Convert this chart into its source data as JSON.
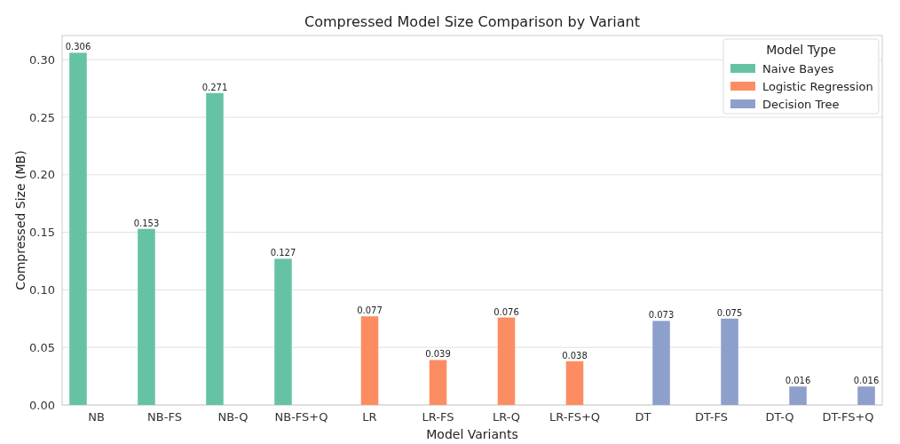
{
  "chart_data": {
    "type": "bar",
    "title": "Compressed Model Size Comparison by Variant",
    "xlabel": "Model Variants",
    "ylabel": "Compressed Size (MB)",
    "legend_title": "Model Type",
    "categories": [
      "NB",
      "NB-FS",
      "NB-Q",
      "NB-FS+Q",
      "LR",
      "LR-FS",
      "LR-Q",
      "LR-FS+Q",
      "DT",
      "DT-FS",
      "DT-Q",
      "DT-FS+Q"
    ],
    "series": [
      {
        "name": "Naive Bayes",
        "color": "#66c2a5",
        "values": [
          0.306,
          0.153,
          0.271,
          0.127,
          null,
          null,
          null,
          null,
          null,
          null,
          null,
          null
        ]
      },
      {
        "name": "Logistic Regression",
        "color": "#fc8d62",
        "values": [
          null,
          null,
          null,
          null,
          0.077,
          0.039,
          0.076,
          0.038,
          null,
          null,
          null,
          null
        ]
      },
      {
        "name": "Decision Tree",
        "color": "#8da0cb",
        "values": [
          null,
          null,
          null,
          null,
          null,
          null,
          null,
          null,
          0.073,
          0.075,
          0.016,
          0.016
        ]
      }
    ],
    "ylim": [
      0,
      0.321
    ],
    "yticks": [
      {
        "value": 0,
        "label": "0.00"
      },
      {
        "value": 0.05,
        "label": "0.05"
      },
      {
        "value": 0.1,
        "label": "0.10"
      },
      {
        "value": 0.15,
        "label": "0.15"
      },
      {
        "value": 0.2,
        "label": "0.20"
      },
      {
        "value": 0.25,
        "label": "0.25"
      },
      {
        "value": 0.3,
        "label": "0.30"
      }
    ],
    "grid": "y",
    "legend": "top right",
    "data_labels": true
  }
}
